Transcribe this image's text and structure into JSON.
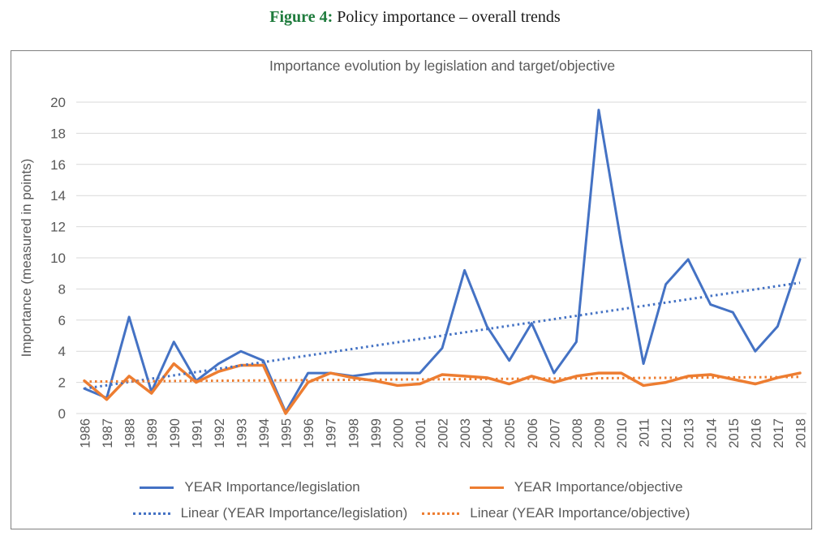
{
  "figure": {
    "label": "Figure 4:",
    "title": " Policy importance – overall trends"
  },
  "chart_data": {
    "type": "line",
    "title": "Importance evolution by legislation and target/objective",
    "xlabel": "",
    "ylabel": "Importance (measured in points)",
    "ylim": [
      0,
      20
    ],
    "y_ticks": [
      0,
      2,
      4,
      6,
      8,
      10,
      12,
      14,
      16,
      18,
      20
    ],
    "grid": true,
    "legend_position": "bottom",
    "categories": [
      "1986",
      "1987",
      "1988",
      "1989",
      "1990",
      "1991",
      "1992",
      "1993",
      "1994",
      "1995",
      "1996",
      "1997",
      "1998",
      "1999",
      "2000",
      "2001",
      "2002",
      "2003",
      "2004",
      "2005",
      "2006",
      "2007",
      "2008",
      "2009",
      "2010",
      "2011",
      "2012",
      "2013",
      "2014",
      "2015",
      "2016",
      "2017",
      "2018"
    ],
    "series": [
      {
        "name": "YEAR Importance/legislation",
        "color": "#4472C4",
        "style": "solid",
        "width": 3,
        "values": [
          1.6,
          1.0,
          6.2,
          1.4,
          4.6,
          2.1,
          3.2,
          4.0,
          3.4,
          0.1,
          2.6,
          2.6,
          2.4,
          2.6,
          2.6,
          2.6,
          4.2,
          9.2,
          5.6,
          3.4,
          5.8,
          2.6,
          4.6,
          19.5,
          11.0,
          3.2,
          8.3,
          9.9,
          7.0,
          6.5,
          4.0,
          5.6,
          9.9
        ]
      },
      {
        "name": "YEAR Importance/objective",
        "color": "#ED7D31",
        "style": "solid",
        "width": 3.5,
        "values": [
          2.1,
          0.9,
          2.4,
          1.3,
          3.2,
          2.0,
          2.7,
          3.1,
          3.1,
          0.0,
          2.0,
          2.6,
          2.3,
          2.1,
          1.8,
          1.9,
          2.5,
          2.4,
          2.3,
          1.9,
          2.4,
          2.0,
          2.4,
          2.6,
          2.6,
          1.8,
          2.0,
          2.4,
          2.5,
          2.2,
          1.9,
          2.3,
          2.6
        ]
      },
      {
        "name": "Linear (YEAR Importance/legislation)",
        "color": "#4472C4",
        "style": "dotted",
        "width": 3,
        "trend_from": 1.6,
        "trend_to": 8.4
      },
      {
        "name": "Linear (YEAR Importance/objective)",
        "color": "#ED7D31",
        "style": "dotted",
        "width": 3,
        "trend_from": 2.05,
        "trend_to": 2.35
      }
    ]
  },
  "colors": {
    "series_blue": "#4472C4",
    "series_orange": "#ED7D31",
    "chart_text_gray": "#595959",
    "gridline_gray": "#D9D9D9",
    "frame_border_gray": "#808080",
    "figure_label_green": "#1E7B3C"
  }
}
